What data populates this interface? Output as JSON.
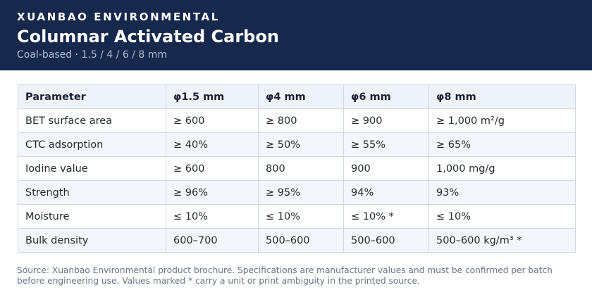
{
  "header": {
    "brand": "XUANBAO ENVIRONMENTAL",
    "title": "Columnar Activated Carbon",
    "subtitle": "Coal-based · 1.5 / 4 / 6 / 8 mm"
  },
  "table": {
    "columns": [
      "Parameter",
      "φ1.5 mm",
      "φ4 mm",
      "φ6 mm",
      "φ8 mm"
    ],
    "rows": [
      [
        "BET surface area",
        "≥ 600",
        "≥ 800",
        "≥ 900",
        "≥ 1,000 m²/g"
      ],
      [
        "CTC adsorption",
        "≥ 40%",
        "≥ 50%",
        "≥ 55%",
        "≥ 65%"
      ],
      [
        "Iodine value",
        "≥ 600",
        "800",
        "900",
        "1,000 mg/g"
      ],
      [
        "Strength",
        "≥ 96%",
        "≥ 95%",
        "94%",
        "93%"
      ],
      [
        "Moisture",
        "≤ 10%",
        "≤ 10%",
        "≤ 10% *",
        "≤ 10%"
      ],
      [
        "Bulk density",
        "600–700",
        "500–600",
        "500–600",
        "500–600 kg/m³ *"
      ]
    ]
  },
  "footer": {
    "note": "Source: Xuanbao Environmental product brochure. Specifications are manufacturer values and must be confirmed per batch before engineering use. Values marked * carry a unit or print ambiguity in the printed source."
  }
}
